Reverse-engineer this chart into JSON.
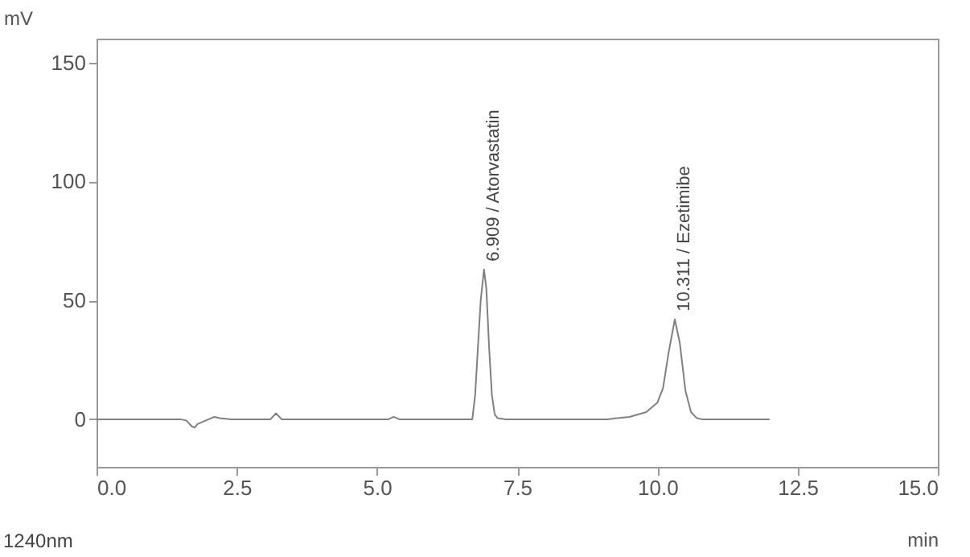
{
  "chart_data": {
    "type": "line",
    "xlabel": "min",
    "ylabel": "mV",
    "x": [
      0,
      1.5,
      1.6,
      1.7,
      1.75,
      1.8,
      1.9,
      2.0,
      2.1,
      2.2,
      2.4,
      3.1,
      3.2,
      3.3,
      5.2,
      5.3,
      5.4,
      6.7,
      6.75,
      6.8,
      6.85,
      6.909,
      6.95,
      7.0,
      7.05,
      7.1,
      7.15,
      7.3,
      9.1,
      9.5,
      9.8,
      10.0,
      10.1,
      10.2,
      10.311,
      10.4,
      10.5,
      10.6,
      10.7,
      10.8,
      12.0
    ],
    "series": [
      {
        "color": "#808080",
        "values": [
          0,
          0,
          -0.5,
          -3,
          -3.5,
          -2,
          -1,
          0,
          1,
          0.5,
          0,
          0,
          2.5,
          0,
          0,
          1,
          0,
          0,
          10,
          30,
          50,
          63,
          55,
          30,
          10,
          2,
          0.5,
          0,
          0,
          1,
          3,
          7,
          13,
          28,
          42,
          32,
          12,
          3,
          0.5,
          0,
          0
        ]
      }
    ],
    "xlim": [
      0,
      15
    ],
    "xticks": [
      {
        "value": 0,
        "label": "0.0"
      },
      {
        "value": 2.5,
        "label": "2.5"
      },
      {
        "value": 5,
        "label": "5.0"
      },
      {
        "value": 7.5,
        "label": "7.5"
      },
      {
        "value": 10,
        "label": "10.0"
      },
      {
        "value": 12.5,
        "label": "12.5"
      },
      {
        "value": 15,
        "label": "15.0"
      }
    ],
    "ylim": [
      -20,
      160
    ],
    "yticks": [
      0,
      50,
      100,
      150
    ],
    "grid": false,
    "marker": "none",
    "line_style": "solid",
    "annotations": [
      {
        "text": "6.909 / Atorvastatin",
        "x": 6.909,
        "y": 63
      },
      {
        "text": "10.311 / Ezetimibe",
        "x": 10.311,
        "y": 42
      },
      "1240nm"
    ]
  }
}
